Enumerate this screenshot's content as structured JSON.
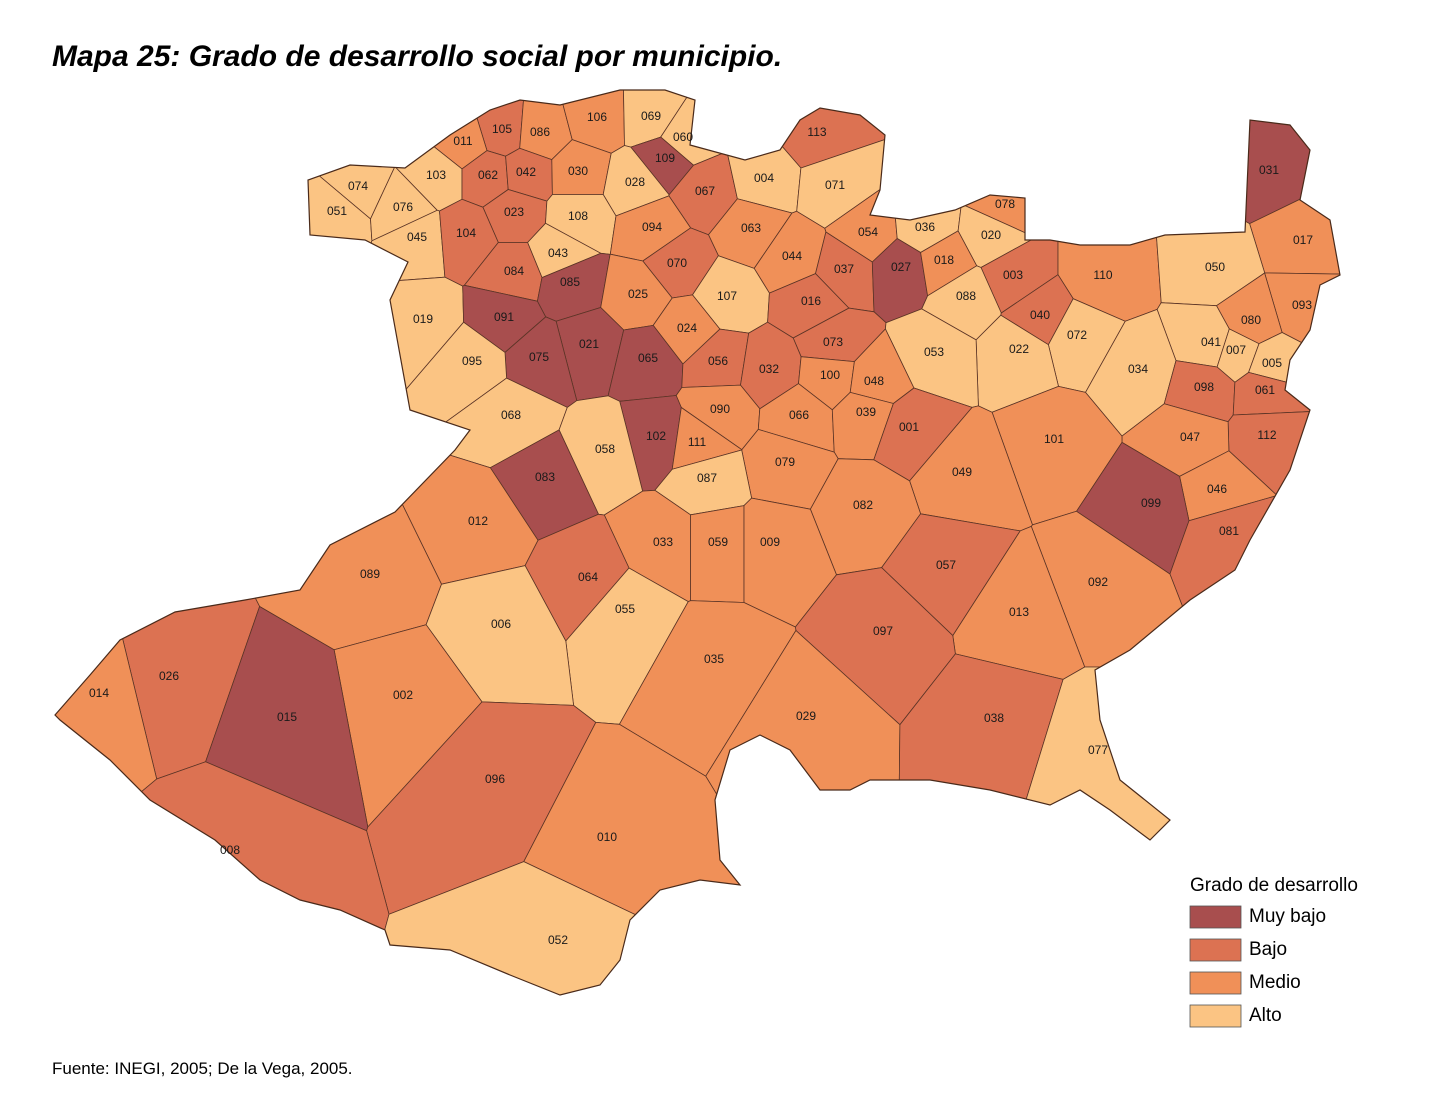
{
  "title": "Mapa 25: Grado de desarrollo social por municipio.",
  "municipalities": [
    {
      "label": "105",
      "grade": "Bajo"
    },
    {
      "label": "086",
      "grade": "Medio"
    },
    {
      "label": "106",
      "grade": "Medio"
    },
    {
      "label": "069",
      "grade": "Alto"
    },
    {
      "label": "060",
      "grade": "Alto"
    },
    {
      "label": "011",
      "grade": "Medio"
    },
    {
      "label": "109",
      "grade": "Muy bajo"
    },
    {
      "label": "113",
      "grade": "Bajo"
    },
    {
      "label": "074",
      "grade": "Alto"
    },
    {
      "label": "103",
      "grade": "Alto"
    },
    {
      "label": "062",
      "grade": "Bajo"
    },
    {
      "label": "042",
      "grade": "Bajo"
    },
    {
      "label": "030",
      "grade": "Medio"
    },
    {
      "label": "028",
      "grade": "Alto"
    },
    {
      "label": "067",
      "grade": "Bajo"
    },
    {
      "label": "004",
      "grade": "Alto"
    },
    {
      "label": "071",
      "grade": "Alto"
    },
    {
      "label": "031",
      "grade": "Muy bajo"
    },
    {
      "label": "051",
      "grade": "Alto"
    },
    {
      "label": "076",
      "grade": "Alto"
    },
    {
      "label": "023",
      "grade": "Bajo"
    },
    {
      "label": "108",
      "grade": "Alto"
    },
    {
      "label": "045",
      "grade": "Alto"
    },
    {
      "label": "104",
      "grade": "Bajo"
    },
    {
      "label": "094",
      "grade": "Medio"
    },
    {
      "label": "063",
      "grade": "Medio"
    },
    {
      "label": "054",
      "grade": "Medio"
    },
    {
      "label": "036",
      "grade": "Alto"
    },
    {
      "label": "078",
      "grade": "Medio"
    },
    {
      "label": "020",
      "grade": "Alto"
    },
    {
      "label": "017",
      "grade": "Medio"
    },
    {
      "label": "043",
      "grade": "Alto"
    },
    {
      "label": "044",
      "grade": "Medio"
    },
    {
      "label": "070",
      "grade": "Bajo"
    },
    {
      "label": "037",
      "grade": "Bajo"
    },
    {
      "label": "027",
      "grade": "Muy bajo"
    },
    {
      "label": "018",
      "grade": "Medio"
    },
    {
      "label": "003",
      "grade": "Bajo"
    },
    {
      "label": "110",
      "grade": "Medio"
    },
    {
      "label": "050",
      "grade": "Alto"
    },
    {
      "label": "084",
      "grade": "Bajo"
    },
    {
      "label": "085",
      "grade": "Muy bajo"
    },
    {
      "label": "025",
      "grade": "Medio"
    },
    {
      "label": "107",
      "grade": "Alto"
    },
    {
      "label": "016",
      "grade": "Bajo"
    },
    {
      "label": "088",
      "grade": "Alto"
    },
    {
      "label": "093",
      "grade": "Medio"
    },
    {
      "label": "019",
      "grade": "Alto"
    },
    {
      "label": "091",
      "grade": "Muy bajo"
    },
    {
      "label": "024",
      "grade": "Medio"
    },
    {
      "label": "080",
      "grade": "Medio"
    },
    {
      "label": "040",
      "grade": "Bajo"
    },
    {
      "label": "072",
      "grade": "Alto"
    },
    {
      "label": "073",
      "grade": "Bajo"
    },
    {
      "label": "021",
      "grade": "Muy bajo"
    },
    {
      "label": "041",
      "grade": "Alto"
    },
    {
      "label": "007",
      "grade": "Alto"
    },
    {
      "label": "022",
      "grade": "Alto"
    },
    {
      "label": "053",
      "grade": "Alto"
    },
    {
      "label": "075",
      "grade": "Muy bajo"
    },
    {
      "label": "065",
      "grade": "Muy bajo"
    },
    {
      "label": "056",
      "grade": "Bajo"
    },
    {
      "label": "095",
      "grade": "Alto"
    },
    {
      "label": "034",
      "grade": "Alto"
    },
    {
      "label": "005",
      "grade": "Alto"
    },
    {
      "label": "032",
      "grade": "Bajo"
    },
    {
      "label": "100",
      "grade": "Medio"
    },
    {
      "label": "048",
      "grade": "Medio"
    },
    {
      "label": "098",
      "grade": "Bajo"
    },
    {
      "label": "061",
      "grade": "Bajo"
    },
    {
      "label": "090",
      "grade": "Medio"
    },
    {
      "label": "068",
      "grade": "Alto"
    },
    {
      "label": "066",
      "grade": "Medio"
    },
    {
      "label": "039",
      "grade": "Medio"
    },
    {
      "label": "001",
      "grade": "Bajo"
    },
    {
      "label": "112",
      "grade": "Bajo"
    },
    {
      "label": "047",
      "grade": "Medio"
    },
    {
      "label": "101",
      "grade": "Medio"
    },
    {
      "label": "102",
      "grade": "Muy bajo"
    },
    {
      "label": "111",
      "grade": "Medio"
    },
    {
      "label": "058",
      "grade": "Alto"
    },
    {
      "label": "079",
      "grade": "Medio"
    },
    {
      "label": "049",
      "grade": "Medio"
    },
    {
      "label": "087",
      "grade": "Alto"
    },
    {
      "label": "083",
      "grade": "Muy bajo"
    },
    {
      "label": "046",
      "grade": "Medio"
    },
    {
      "label": "099",
      "grade": "Muy bajo"
    },
    {
      "label": "082",
      "grade": "Medio"
    },
    {
      "label": "012",
      "grade": "Medio"
    },
    {
      "label": "081",
      "grade": "Bajo"
    },
    {
      "label": "033",
      "grade": "Medio"
    },
    {
      "label": "059",
      "grade": "Medio"
    },
    {
      "label": "009",
      "grade": "Medio"
    },
    {
      "label": "057",
      "grade": "Bajo"
    },
    {
      "label": "089",
      "grade": "Medio"
    },
    {
      "label": "092",
      "grade": "Medio"
    },
    {
      "label": "064",
      "grade": "Bajo"
    },
    {
      "label": "055",
      "grade": "Alto"
    },
    {
      "label": "013",
      "grade": "Medio"
    },
    {
      "label": "006",
      "grade": "Alto"
    },
    {
      "label": "097",
      "grade": "Bajo"
    },
    {
      "label": "035",
      "grade": "Medio"
    },
    {
      "label": "026",
      "grade": "Bajo"
    },
    {
      "label": "014",
      "grade": "Medio"
    },
    {
      "label": "002",
      "grade": "Medio"
    },
    {
      "label": "015",
      "grade": "Muy bajo"
    },
    {
      "label": "029",
      "grade": "Medio"
    },
    {
      "label": "038",
      "grade": "Bajo"
    },
    {
      "label": "077",
      "grade": "Alto"
    },
    {
      "label": "096",
      "grade": "Bajo"
    },
    {
      "label": "010",
      "grade": "Medio"
    },
    {
      "label": "008",
      "grade": "Bajo"
    },
    {
      "label": "052",
      "grade": "Alto"
    }
  ],
  "legend": {
    "title": "Grado de desarrollo",
    "items": [
      {
        "name": "Muy bajo",
        "color": "#a84e4e"
      },
      {
        "name": "Bajo",
        "color": "#dc7252"
      },
      {
        "name": "Medio",
        "color": "#f09058"
      },
      {
        "name": "Alto",
        "color": "#fbc483"
      }
    ]
  },
  "source": "Fuente: INEGI, 2005; De la Vega, 2005."
}
